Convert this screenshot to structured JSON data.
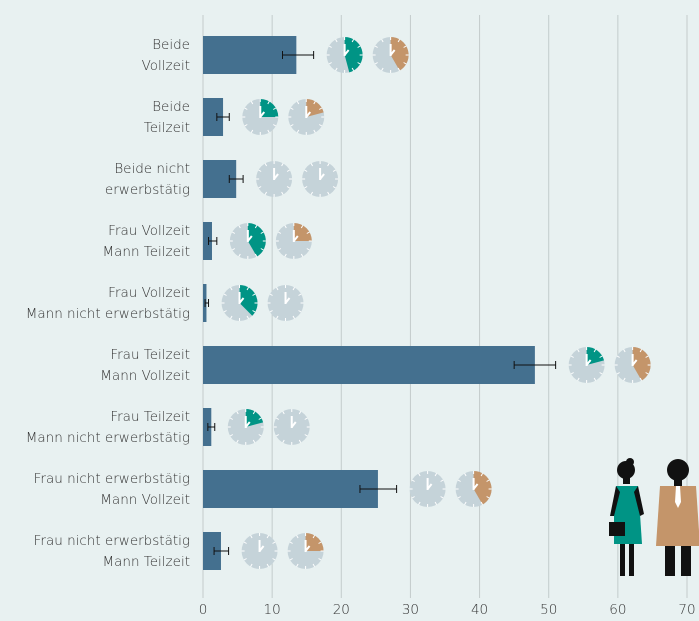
{
  "chart_data": {
    "type": "bar",
    "orientation": "horizontal",
    "categories": [
      [
        "Beide",
        "Vollzeit"
      ],
      [
        "Beide",
        "Teilzeit"
      ],
      [
        "Beide nicht",
        "erwerbstätig"
      ],
      [
        "Frau Vollzeit",
        "Mann Teilzeit"
      ],
      [
        "Frau Vollzeit",
        "Mann nicht erwerbstätig"
      ],
      [
        "Frau Teilzeit",
        "Mann Vollzeit"
      ],
      [
        "Frau Teilzeit",
        "Mann nicht erwerbstätig"
      ],
      [
        "Frau nicht erwerbstätig",
        "Mann Vollzeit"
      ],
      [
        "Frau nicht erwerbstätig",
        "Mann Teilzeit"
      ]
    ],
    "values": [
      13.5,
      2.9,
      4.8,
      1.3,
      0.5,
      48,
      1.2,
      25.3,
      2.6
    ],
    "error_low": [
      11.5,
      2.0,
      3.8,
      0.8,
      0.3,
      45,
      0.7,
      22.7,
      1.6
    ],
    "error_high": [
      16,
      3.8,
      5.8,
      2.0,
      0.8,
      51,
      1.7,
      28,
      3.7
    ],
    "color": "#44708f",
    "clock_woman": [
      5.5,
      3,
      0,
      5,
      4.5,
      2.5,
      2.5,
      0,
      0
    ],
    "clock_man": [
      5,
      2.5,
      0,
      3,
      0,
      5,
      0,
      5,
      3
    ],
    "clock_woman_color": "#009485",
    "clock_man_color": "#c4956a",
    "xlim": [
      0,
      70
    ],
    "xticks": [
      0,
      10,
      20,
      30,
      40,
      50,
      60,
      70
    ],
    "grid": true
  }
}
